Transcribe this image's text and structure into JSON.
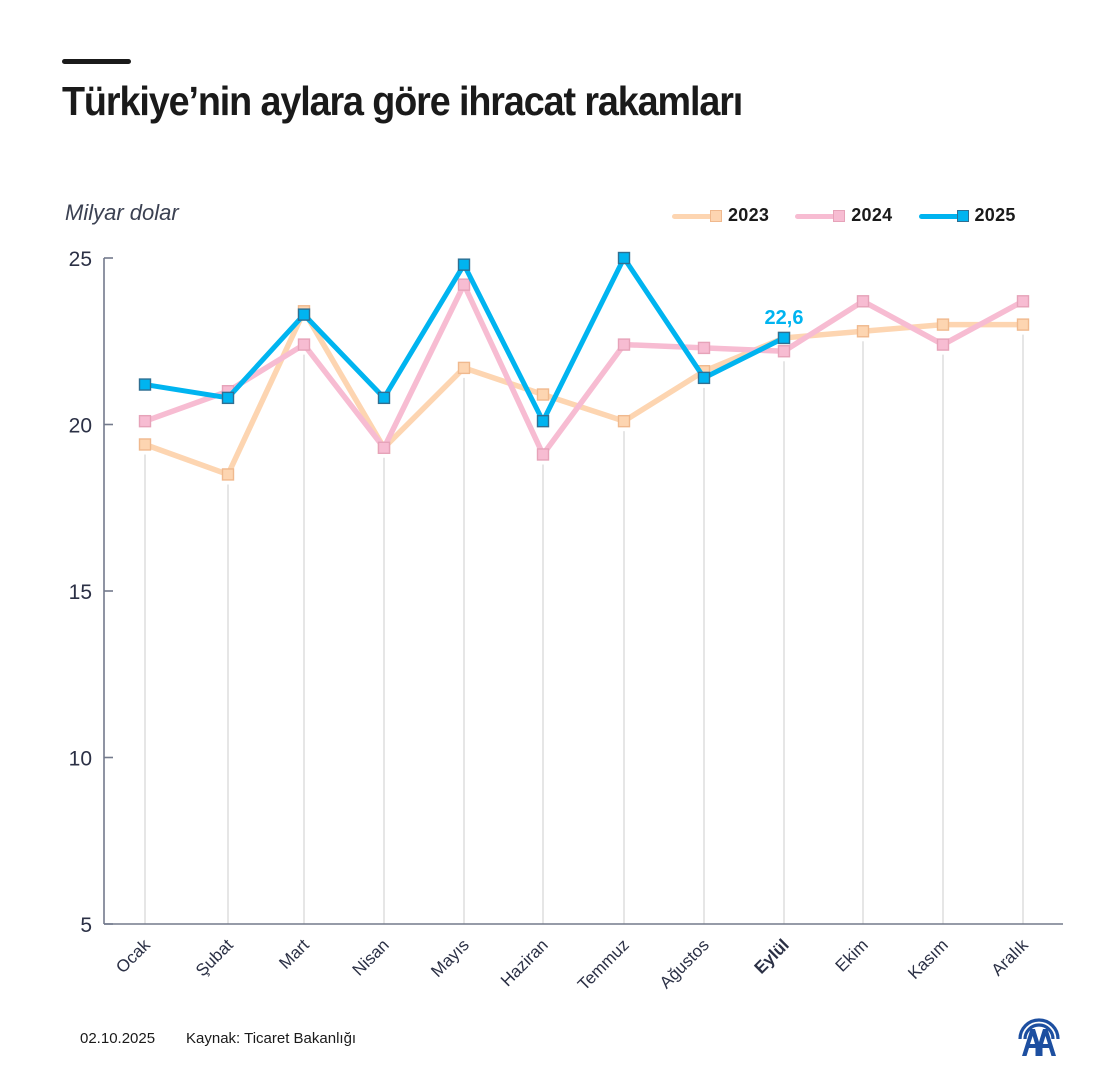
{
  "header": {
    "title": "Türkiye’nin aylara göre ihracat rakamları",
    "unit_label": "Milyar dolar"
  },
  "legend": [
    {
      "label": "2023",
      "color": "#fdd5b1",
      "marker_border": "#f0b98e"
    },
    {
      "label": "2024",
      "color": "#f7bcd2",
      "marker_border": "#e6a3b9"
    },
    {
      "label": "2025",
      "color": "#00b4f0",
      "marker_border": "#2f6f92"
    }
  ],
  "footer": {
    "date": "02.10.2025",
    "source": "Kaynak: Ticaret Bakanlığı",
    "logo": "AA"
  },
  "chart_data": {
    "type": "line",
    "title": "Türkiye’nin aylara göre ihracat rakamları",
    "xlabel": "",
    "ylabel": "Milyar dolar",
    "ylim": [
      5,
      25
    ],
    "yticks": [
      5,
      10,
      15,
      20,
      25
    ],
    "grid": "vertical lines at each month",
    "legend_position": "top-right",
    "categories": [
      "Ocak",
      "Şubat",
      "Mart",
      "Nisan",
      "Mayıs",
      "Haziran",
      "Temmuz",
      "Ağustos",
      "Eylül",
      "Ekim",
      "Kasım",
      "Aralık"
    ],
    "highlight_category": "Eylül",
    "series": [
      {
        "name": "2023",
        "color": "#fdd5b1",
        "values": [
          19.4,
          18.5,
          23.4,
          19.3,
          21.7,
          20.9,
          20.1,
          21.6,
          22.6,
          22.8,
          23.0,
          23.0
        ]
      },
      {
        "name": "2024",
        "color": "#f7bcd2",
        "values": [
          20.1,
          21.0,
          22.4,
          19.3,
          24.2,
          19.1,
          22.4,
          22.3,
          22.2,
          23.7,
          22.4,
          23.7
        ]
      },
      {
        "name": "2025",
        "color": "#00b4f0",
        "values": [
          21.2,
          20.8,
          23.3,
          20.8,
          24.8,
          20.1,
          25.0,
          21.4,
          22.6,
          null,
          null,
          null
        ]
      }
    ],
    "annotations": [
      {
        "category": "Eylül",
        "series": "2025",
        "text": "22,6",
        "color": "#00b4f0"
      }
    ]
  }
}
